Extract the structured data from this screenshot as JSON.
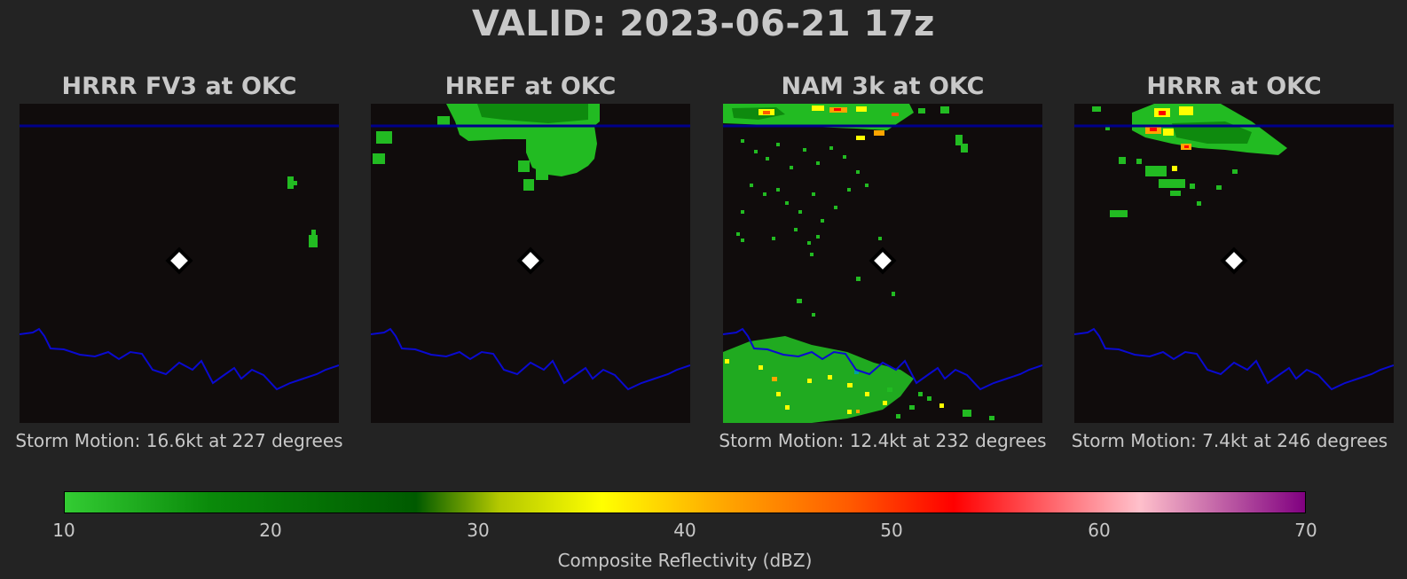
{
  "title": "VALID: 2023-06-21 17z",
  "panels": [
    {
      "title": "HRRR FV3 at OKC",
      "storm_motion": "Storm Motion: 16.6kt at 227 degrees"
    },
    {
      "title": "HREF at OKC",
      "storm_motion": ""
    },
    {
      "title": "NAM 3k at OKC",
      "storm_motion": "Storm Motion: 12.4kt at 232 degrees"
    },
    {
      "title": "HRRR at OKC",
      "storm_motion": "Storm Motion: 7.4kt at 246 degrees"
    }
  ],
  "colorbar": {
    "label": "Composite Reflectivity (dBZ)",
    "ticks": [
      "10",
      "20",
      "30",
      "40",
      "50",
      "60",
      "70"
    ],
    "min": 10,
    "max": 70,
    "stops": [
      {
        "value": 10,
        "color": "#33cc33"
      },
      {
        "value": 17,
        "color": "#0a8a0a"
      },
      {
        "value": 27,
        "color": "#005a00"
      },
      {
        "value": 31,
        "color": "#b3c800"
      },
      {
        "value": 36,
        "color": "#ffff00"
      },
      {
        "value": 42,
        "color": "#ffa500"
      },
      {
        "value": 48,
        "color": "#ff5a00"
      },
      {
        "value": 53,
        "color": "#ff0000"
      },
      {
        "value": 62,
        "color": "#ffc0cb"
      },
      {
        "value": 70,
        "color": "#800080"
      }
    ]
  },
  "colors": {
    "background": "#232323",
    "map_background": "#100c0c",
    "border_line": "#00008b",
    "station_marker": "#ffffff"
  }
}
